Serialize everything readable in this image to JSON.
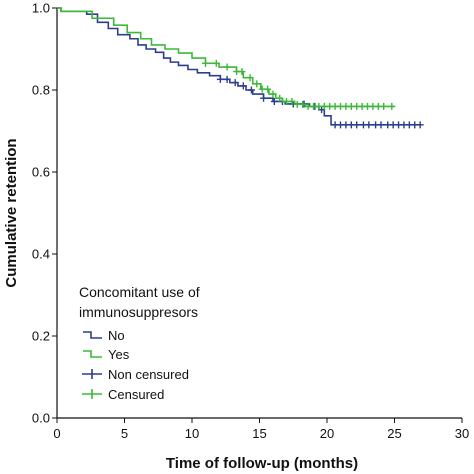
{
  "chart_data": {
    "type": "line",
    "subtype": "kaplan-meier",
    "xlabel": "Time of follow-up (months)",
    "ylabel": "Cumulative retention",
    "xlim": [
      0,
      30
    ],
    "ylim": [
      0.0,
      1.0
    ],
    "xticks": [
      0,
      5,
      10,
      15,
      20,
      25,
      30
    ],
    "yticks": [
      0.0,
      0.2,
      0.4,
      0.6,
      0.8,
      1.0
    ],
    "xtick_labels": [
      "0",
      "5",
      "10",
      "15",
      "20",
      "25",
      "30"
    ],
    "ytick_labels": [
      "0.0",
      "0.2",
      "0.4",
      "0.6",
      "0.8",
      "1.0"
    ],
    "grid": false,
    "legend": {
      "title": [
        "Concomitant use of",
        "immunosuppresors"
      ],
      "placement": "bottom-left",
      "entries": [
        {
          "label": "No",
          "kind": "step",
          "color": "#2b3f8c"
        },
        {
          "label": "Yes",
          "kind": "step",
          "color": "#3db83a"
        },
        {
          "label": "Non censured",
          "kind": "censor",
          "color": "#2b3f8c"
        },
        {
          "label": "Censured",
          "kind": "censor",
          "color": "#3db83a"
        }
      ]
    },
    "series": [
      {
        "name": "No",
        "color": "#2b3f8c",
        "steps": [
          [
            0,
            1.0
          ],
          [
            0.3,
            0.992
          ],
          [
            2.2,
            0.985
          ],
          [
            3.0,
            0.965
          ],
          [
            3.8,
            0.95
          ],
          [
            4.5,
            0.935
          ],
          [
            5.4,
            0.925
          ],
          [
            6.0,
            0.91
          ],
          [
            6.6,
            0.9
          ],
          [
            7.3,
            0.892
          ],
          [
            7.9,
            0.878
          ],
          [
            8.4,
            0.868
          ],
          [
            9.0,
            0.86
          ],
          [
            9.7,
            0.85
          ],
          [
            10.4,
            0.842
          ],
          [
            11.3,
            0.835
          ],
          [
            12.1,
            0.826
          ],
          [
            12.8,
            0.818
          ],
          [
            13.4,
            0.81
          ],
          [
            14.0,
            0.8
          ],
          [
            14.5,
            0.79
          ],
          [
            15.3,
            0.78
          ],
          [
            16.0,
            0.772
          ],
          [
            16.9,
            0.766
          ],
          [
            18.7,
            0.76
          ],
          [
            19.4,
            0.752
          ],
          [
            19.8,
            0.737
          ],
          [
            20.3,
            0.715
          ],
          [
            27.0,
            0.715
          ]
        ],
        "censored_x": [
          12.1,
          12.6,
          13.2,
          13.8,
          14.4,
          15.3,
          16.1,
          16.7,
          17.5,
          18.3,
          19.1,
          19.6,
          20.6,
          21.0,
          21.4,
          21.8,
          22.2,
          22.7,
          23.1,
          23.6,
          24.0,
          24.5,
          24.9,
          25.3,
          25.7,
          26.1,
          26.5,
          26.9
        ]
      },
      {
        "name": "Yes",
        "color": "#3db83a",
        "steps": [
          [
            0,
            1.0
          ],
          [
            0.3,
            0.992
          ],
          [
            2.6,
            0.975
          ],
          [
            4.2,
            0.958
          ],
          [
            5.2,
            0.94
          ],
          [
            6.2,
            0.925
          ],
          [
            7.0,
            0.91
          ],
          [
            8.0,
            0.9
          ],
          [
            9.0,
            0.89
          ],
          [
            10.0,
            0.878
          ],
          [
            11.0,
            0.865
          ],
          [
            12.0,
            0.856
          ],
          [
            13.3,
            0.845
          ],
          [
            13.8,
            0.83
          ],
          [
            14.5,
            0.815
          ],
          [
            15.1,
            0.802
          ],
          [
            15.7,
            0.79
          ],
          [
            16.2,
            0.78
          ],
          [
            16.7,
            0.772
          ],
          [
            17.6,
            0.765
          ],
          [
            18.4,
            0.76
          ],
          [
            25.0,
            0.76
          ]
        ],
        "censored_x": [
          11.0,
          11.8,
          12.6,
          13.3,
          13.7,
          14.3,
          14.8,
          15.2,
          15.6,
          16.0,
          16.5,
          17.0,
          17.4,
          17.8,
          18.2,
          18.6,
          19.0,
          19.4,
          19.8,
          20.2,
          20.6,
          21.0,
          21.4,
          21.8,
          22.2,
          22.6,
          23.0,
          23.4,
          23.8,
          24.2,
          24.8
        ]
      }
    ]
  }
}
